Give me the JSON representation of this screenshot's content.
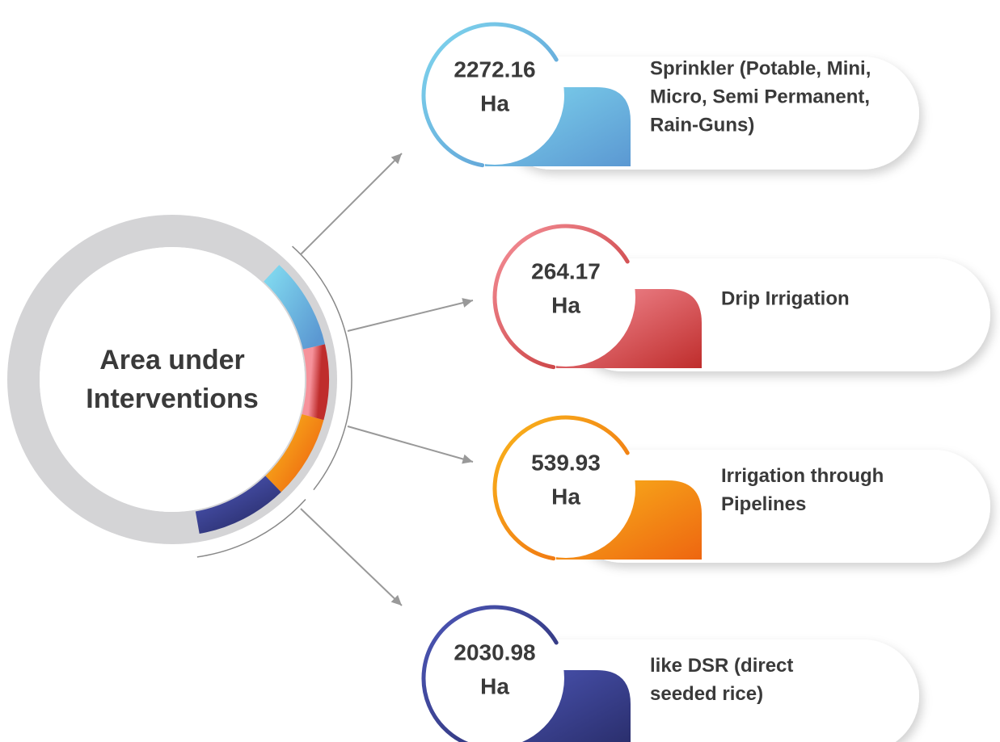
{
  "center_title": [
    "Area under",
    "Interventions"
  ],
  "items": [
    {
      "value": "2272.16",
      "unit": "Ha",
      "label": [
        "Sprinkler (Potable, Mini,",
        "Micro, Semi Permanent,",
        "Rain-Guns)"
      ]
    },
    {
      "value": "264.17",
      "unit": "Ha",
      "label": [
        "Drip Irrigation"
      ]
    },
    {
      "value": "539.93",
      "unit": "Ha",
      "label": [
        "Irrigation through",
        "Pipelines"
      ]
    },
    {
      "value": "2030.98",
      "unit": "Ha",
      "label": [
        "like DSR (direct",
        "seeded rice)"
      ]
    }
  ]
}
